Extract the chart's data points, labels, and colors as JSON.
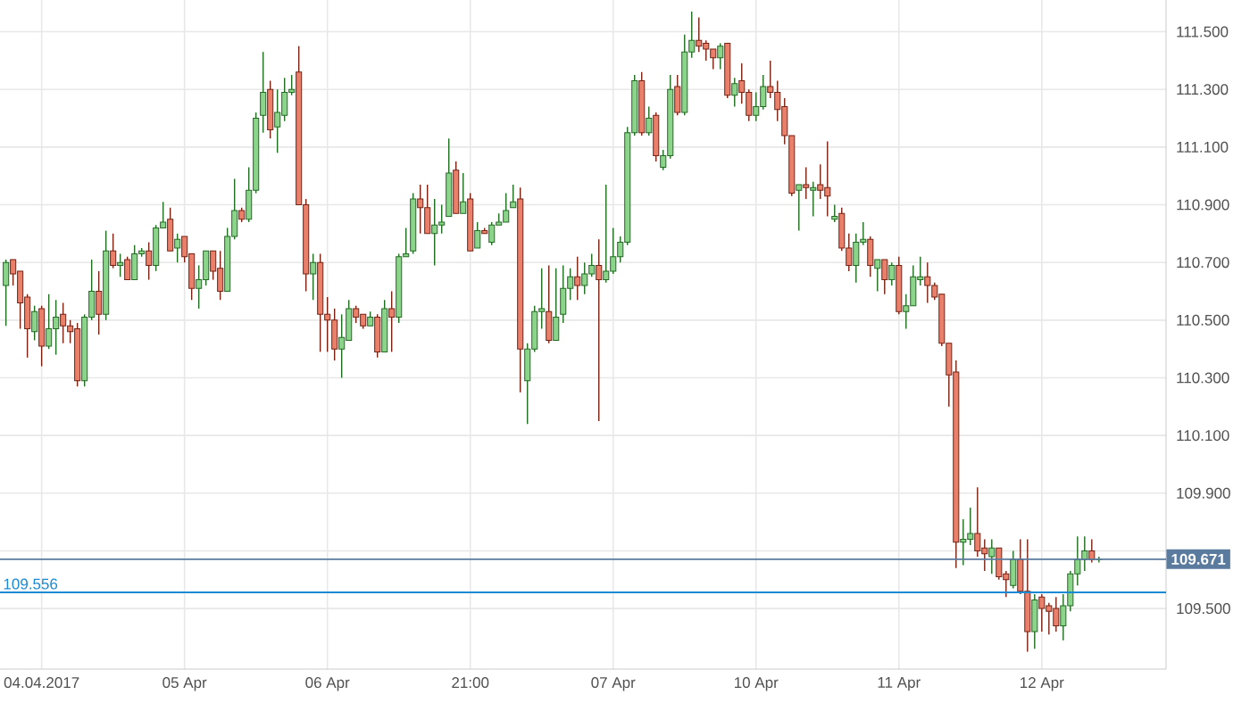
{
  "chart_data": {
    "type": "candlestick",
    "categories": [
      null,
      null,
      null,
      null,
      null,
      "04.04.2017",
      null,
      null,
      null,
      null,
      null,
      null,
      null,
      null,
      null,
      null,
      null,
      null,
      null,
      null,
      null,
      null,
      null,
      null,
      null,
      "05 Apr",
      null,
      null,
      null,
      null,
      null,
      null,
      null,
      null,
      null,
      null,
      null,
      null,
      null,
      null,
      null,
      null,
      null,
      null,
      null,
      "06 Apr",
      null,
      null,
      null,
      null,
      null,
      null,
      null,
      null,
      null,
      null,
      null,
      null,
      null,
      null,
      null,
      null,
      null,
      null,
      null,
      "21:00",
      null,
      null,
      null,
      null,
      null,
      null,
      null,
      null,
      null,
      null,
      null,
      null,
      null,
      null,
      null,
      null,
      null,
      null,
      null,
      "07 Apr",
      null,
      null,
      null,
      null,
      null,
      null,
      null,
      null,
      null,
      null,
      null,
      null,
      null,
      null,
      null,
      null,
      null,
      null,
      null,
      "10 Apr",
      null,
      null,
      null,
      null,
      null,
      null,
      null,
      null,
      null,
      null,
      null,
      null,
      null,
      null,
      null,
      null,
      null,
      null,
      null,
      "11 Apr",
      null,
      null,
      null,
      null,
      null,
      null,
      null,
      null,
      null,
      null,
      null,
      null,
      null,
      null,
      null,
      null,
      null,
      null,
      null,
      "12 Apr",
      null,
      null,
      null,
      null,
      null,
      null,
      null,
      null
    ],
    "ohlc": [
      [
        110.62,
        110.71,
        110.48,
        110.7
      ],
      [
        110.71,
        110.71,
        110.62,
        110.66
      ],
      [
        110.67,
        110.67,
        110.47,
        110.56
      ],
      [
        110.58,
        110.59,
        110.37,
        110.47
      ],
      [
        110.46,
        110.55,
        110.43,
        110.53
      ],
      [
        110.54,
        110.55,
        110.34,
        110.41
      ],
      [
        110.41,
        110.59,
        110.4,
        110.47
      ],
      [
        110.47,
        110.57,
        110.38,
        110.51
      ],
      [
        110.52,
        110.56,
        110.42,
        110.48
      ],
      [
        110.48,
        110.5,
        110.42,
        110.46
      ],
      [
        110.47,
        110.49,
        110.27,
        110.29
      ],
      [
        110.29,
        110.52,
        110.27,
        110.51
      ],
      [
        110.51,
        110.71,
        110.5,
        110.6
      ],
      [
        110.6,
        110.67,
        110.45,
        110.52
      ],
      [
        110.52,
        110.81,
        110.5,
        110.74
      ],
      [
        110.74,
        110.8,
        110.68,
        110.69
      ],
      [
        110.69,
        110.73,
        110.65,
        110.7
      ],
      [
        110.71,
        110.72,
        110.64,
        110.64
      ],
      [
        110.64,
        110.76,
        110.64,
        110.73
      ],
      [
        110.73,
        110.75,
        110.72,
        110.74
      ],
      [
        110.74,
        110.77,
        110.64,
        110.69
      ],
      [
        110.69,
        110.83,
        110.67,
        110.82
      ],
      [
        110.82,
        110.91,
        110.82,
        110.84
      ],
      [
        110.85,
        110.89,
        110.74,
        110.74
      ],
      [
        110.75,
        110.8,
        110.7,
        110.78
      ],
      [
        110.79,
        110.79,
        110.7,
        110.72
      ],
      [
        110.73,
        110.73,
        110.57,
        110.61
      ],
      [
        110.61,
        110.69,
        110.54,
        110.64
      ],
      [
        110.64,
        110.74,
        110.62,
        110.74
      ],
      [
        110.74,
        110.74,
        110.64,
        110.67
      ],
      [
        110.68,
        110.74,
        110.57,
        110.6
      ],
      [
        110.6,
        110.82,
        110.6,
        110.79
      ],
      [
        110.79,
        110.99,
        110.78,
        110.88
      ],
      [
        110.88,
        110.89,
        110.84,
        110.85
      ],
      [
        110.85,
        111.03,
        110.84,
        110.95
      ],
      [
        110.95,
        111.22,
        110.94,
        111.2
      ],
      [
        111.21,
        111.43,
        111.15,
        111.29
      ],
      [
        111.3,
        111.33,
        111.13,
        111.16
      ],
      [
        111.17,
        111.3,
        111.08,
        111.22
      ],
      [
        111.21,
        111.34,
        111.19,
        111.29
      ],
      [
        111.29,
        111.35,
        111.28,
        111.3
      ],
      [
        111.36,
        111.45,
        110.9,
        110.9
      ],
      [
        110.9,
        110.92,
        110.6,
        110.66
      ],
      [
        110.66,
        110.73,
        110.57,
        110.7
      ],
      [
        110.7,
        110.73,
        110.39,
        110.52
      ],
      [
        110.52,
        110.58,
        110.39,
        110.5
      ],
      [
        110.5,
        110.54,
        110.36,
        110.4
      ],
      [
        110.4,
        110.52,
        110.3,
        110.44
      ],
      [
        110.43,
        110.57,
        110.43,
        110.54
      ],
      [
        110.54,
        110.55,
        110.49,
        110.51
      ],
      [
        110.52,
        110.52,
        110.47,
        110.48
      ],
      [
        110.48,
        110.53,
        110.48,
        110.51
      ],
      [
        110.51,
        110.52,
        110.37,
        110.39
      ],
      [
        110.39,
        110.57,
        110.39,
        110.54
      ],
      [
        110.54,
        110.6,
        110.39,
        110.51
      ],
      [
        110.51,
        110.73,
        110.49,
        110.72
      ],
      [
        110.72,
        110.82,
        110.72,
        110.73
      ],
      [
        110.74,
        110.94,
        110.73,
        110.92
      ],
      [
        110.92,
        110.97,
        110.8,
        110.89
      ],
      [
        110.89,
        110.97,
        110.8,
        110.8
      ],
      [
        110.8,
        110.92,
        110.69,
        110.83
      ],
      [
        110.83,
        110.9,
        110.8,
        110.84
      ],
      [
        110.86,
        111.13,
        110.86,
        111.01
      ],
      [
        111.02,
        111.05,
        110.87,
        110.87
      ],
      [
        110.87,
        111.01,
        110.87,
        110.91
      ],
      [
        110.92,
        110.94,
        110.74,
        110.74
      ],
      [
        110.75,
        110.84,
        110.75,
        110.81
      ],
      [
        110.81,
        110.82,
        110.8,
        110.8
      ],
      [
        110.77,
        110.84,
        110.76,
        110.83
      ],
      [
        110.83,
        110.87,
        110.83,
        110.84
      ],
      [
        110.84,
        110.94,
        110.84,
        110.88
      ],
      [
        110.89,
        110.97,
        110.89,
        110.91
      ],
      [
        110.92,
        110.96,
        110.25,
        110.4
      ],
      [
        110.29,
        110.42,
        110.14,
        110.4
      ],
      [
        110.4,
        110.55,
        110.39,
        110.53
      ],
      [
        110.53,
        110.68,
        110.47,
        110.54
      ],
      [
        110.53,
        110.69,
        110.42,
        110.43
      ],
      [
        110.43,
        110.68,
        110.43,
        110.51
      ],
      [
        110.52,
        110.69,
        110.49,
        110.61
      ],
      [
        110.61,
        110.68,
        110.57,
        110.65
      ],
      [
        110.65,
        110.72,
        110.57,
        110.62
      ],
      [
        110.62,
        110.7,
        110.59,
        110.66
      ],
      [
        110.66,
        110.73,
        110.65,
        110.69
      ],
      [
        110.69,
        110.78,
        110.15,
        110.64
      ],
      [
        110.64,
        110.97,
        110.63,
        110.67
      ],
      [
        110.67,
        110.82,
        110.66,
        110.72
      ],
      [
        110.72,
        110.79,
        110.7,
        110.77
      ],
      [
        110.77,
        111.17,
        110.76,
        111.15
      ],
      [
        111.15,
        111.35,
        111.14,
        111.33
      ],
      [
        111.33,
        111.36,
        111.14,
        111.15
      ],
      [
        111.15,
        111.24,
        111.14,
        111.2
      ],
      [
        111.21,
        111.22,
        111.05,
        111.07
      ],
      [
        111.03,
        111.09,
        111.02,
        111.07
      ],
      [
        111.07,
        111.35,
        111.06,
        111.3
      ],
      [
        111.31,
        111.35,
        111.21,
        111.22
      ],
      [
        111.22,
        111.49,
        111.21,
        111.43
      ],
      [
        111.43,
        111.57,
        111.41,
        111.47
      ],
      [
        111.47,
        111.55,
        111.43,
        111.45
      ],
      [
        111.46,
        111.47,
        111.4,
        111.44
      ],
      [
        111.44,
        111.44,
        111.37,
        111.41
      ],
      [
        111.41,
        111.46,
        111.37,
        111.45
      ],
      [
        111.46,
        111.46,
        111.27,
        111.28
      ],
      [
        111.28,
        111.34,
        111.24,
        111.32
      ],
      [
        111.33,
        111.39,
        111.25,
        111.29
      ],
      [
        111.29,
        111.3,
        111.19,
        111.21
      ],
      [
        111.21,
        111.29,
        111.19,
        111.24
      ],
      [
        111.24,
        111.35,
        111.23,
        111.31
      ],
      [
        111.31,
        111.4,
        111.27,
        111.29
      ],
      [
        111.29,
        111.33,
        111.19,
        111.23
      ],
      [
        111.24,
        111.27,
        111.11,
        111.14
      ],
      [
        111.14,
        111.14,
        110.93,
        110.94
      ],
      [
        110.95,
        110.97,
        110.81,
        110.97
      ],
      [
        110.97,
        111.03,
        110.92,
        110.96
      ],
      [
        110.95,
        110.98,
        110.86,
        110.96
      ],
      [
        110.97,
        111.04,
        110.92,
        110.95
      ],
      [
        110.96,
        111.12,
        110.86,
        110.93
      ],
      [
        110.85,
        110.9,
        110.84,
        110.86
      ],
      [
        110.87,
        110.89,
        110.74,
        110.75
      ],
      [
        110.75,
        110.8,
        110.67,
        110.69
      ],
      [
        110.69,
        110.8,
        110.63,
        110.77
      ],
      [
        110.77,
        110.84,
        110.76,
        110.78
      ],
      [
        110.78,
        110.79,
        110.65,
        110.69
      ],
      [
        110.68,
        110.71,
        110.6,
        110.71
      ],
      [
        110.71,
        110.71,
        110.59,
        110.64
      ],
      [
        110.64,
        110.7,
        110.62,
        110.69
      ],
      [
        110.69,
        110.72,
        110.52,
        110.53
      ],
      [
        110.53,
        110.59,
        110.47,
        110.55
      ],
      [
        110.55,
        110.69,
        110.55,
        110.65
      ],
      [
        110.64,
        110.72,
        110.62,
        110.65
      ],
      [
        110.65,
        110.7,
        110.56,
        110.62
      ],
      [
        110.62,
        110.63,
        110.57,
        110.58
      ],
      [
        110.59,
        110.59,
        110.41,
        110.42
      ],
      [
        110.42,
        110.42,
        110.2,
        110.31
      ],
      [
        110.32,
        110.36,
        109.64,
        109.73
      ],
      [
        109.73,
        109.81,
        109.65,
        109.74
      ],
      [
        109.74,
        109.85,
        109.72,
        109.76
      ],
      [
        109.76,
        109.92,
        109.68,
        109.7
      ],
      [
        109.71,
        109.74,
        109.63,
        109.69
      ],
      [
        109.68,
        109.74,
        109.62,
        109.71
      ],
      [
        109.71,
        109.71,
        109.6,
        109.61
      ],
      [
        109.62,
        109.63,
        109.54,
        109.6
      ],
      [
        109.58,
        109.7,
        109.57,
        109.67
      ],
      [
        109.67,
        109.74,
        109.55,
        109.56
      ],
      [
        109.56,
        109.74,
        109.35,
        109.42
      ],
      [
        109.42,
        109.55,
        109.36,
        109.53
      ],
      [
        109.54,
        109.55,
        109.42,
        109.5
      ],
      [
        109.51,
        109.52,
        109.41,
        109.49
      ],
      [
        109.5,
        109.54,
        109.42,
        109.44
      ],
      [
        109.44,
        109.55,
        109.39,
        109.51
      ],
      [
        109.51,
        109.63,
        109.49,
        109.62
      ],
      [
        109.62,
        109.75,
        109.58,
        109.67
      ],
      [
        109.67,
        109.75,
        109.63,
        109.7
      ],
      [
        109.7,
        109.74,
        109.66,
        109.67
      ],
      [
        109.67,
        109.68,
        109.66,
        109.671
      ]
    ],
    "ylim": [
      109.29,
      111.61
    ],
    "yticks": [
      {
        "value": 109.5,
        "label": "109.500"
      },
      {
        "value": 109.7,
        "label": null
      },
      {
        "value": 109.9,
        "label": "109.900"
      },
      {
        "value": 110.1,
        "label": "110.100"
      },
      {
        "value": 110.3,
        "label": "110.300"
      },
      {
        "value": 110.5,
        "label": "110.500"
      },
      {
        "value": 110.7,
        "label": "110.700"
      },
      {
        "value": 110.9,
        "label": "110.900"
      },
      {
        "value": 111.1,
        "label": "111.100"
      },
      {
        "value": 111.3,
        "label": "111.300"
      },
      {
        "value": 111.5,
        "label": "111.500"
      }
    ],
    "ref_lines": [
      {
        "axis": "y",
        "value": 109.556,
        "label": "109.556",
        "color": "#1a8ad4"
      },
      {
        "axis": "y",
        "value": 109.671,
        "label": "109.671",
        "color": "#5a7a9e"
      }
    ],
    "grid": true
  }
}
